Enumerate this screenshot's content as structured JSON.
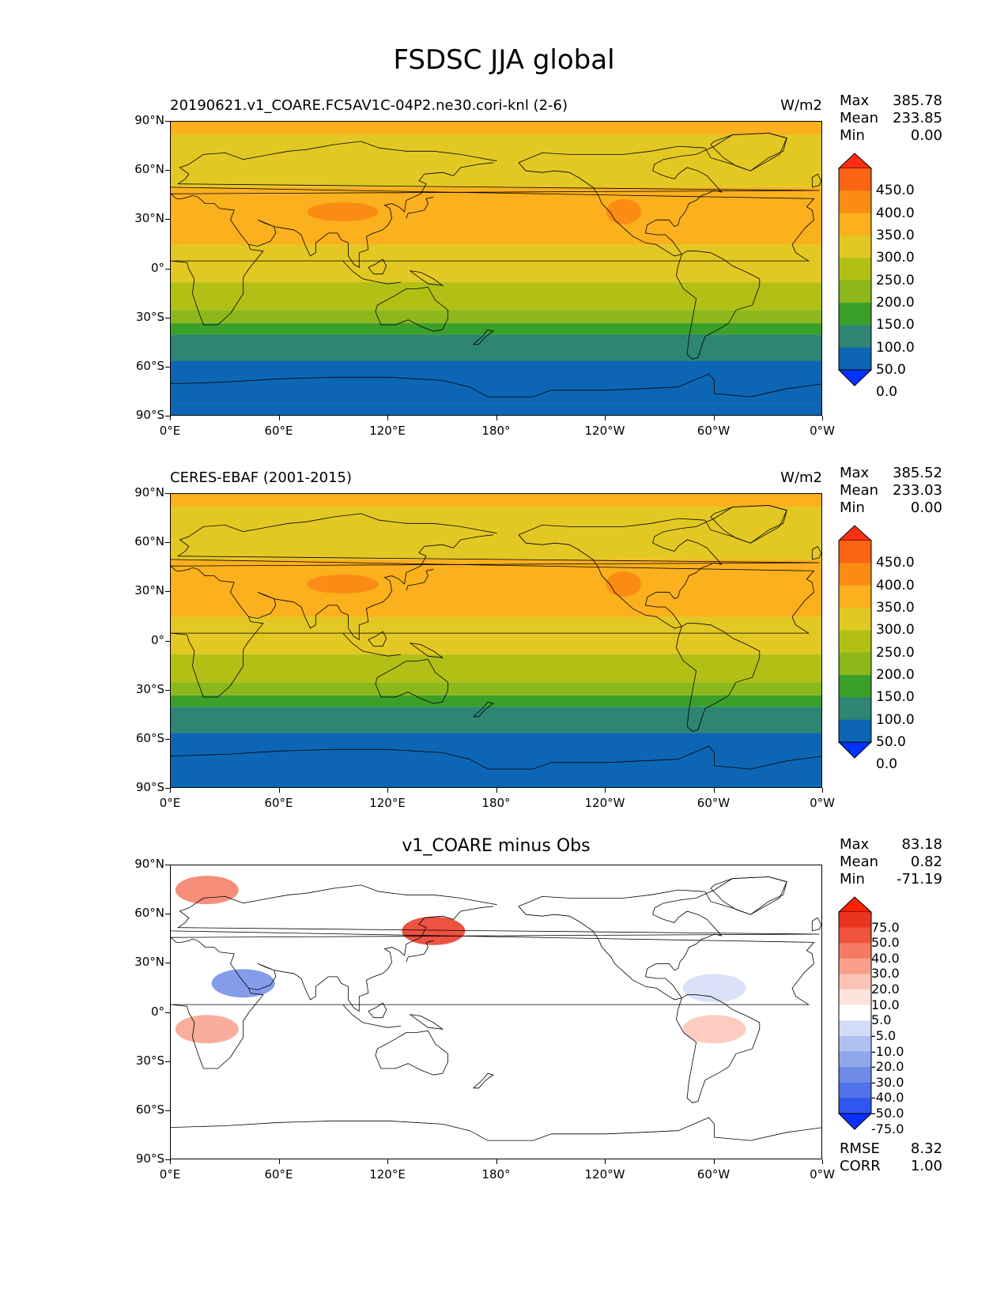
{
  "title": "FSDSC JJA global",
  "panels": [
    {
      "title_left": "20190621.v1_COARE.FC5AV1C-04P2.ne30.cori-knl (2-6)",
      "title_center": "",
      "units": "W/m2",
      "stats": {
        "max_label": "Max",
        "max": "385.78",
        "mean_label": "Mean",
        "mean": "233.85",
        "min_label": "Min",
        "min": "0.00"
      },
      "colorbar_labels": [
        "450.0",
        "400.0",
        "350.0",
        "300.0",
        "250.0",
        "200.0",
        "150.0",
        "100.0",
        "50.0",
        "0.0"
      ],
      "footer": null
    },
    {
      "title_left": "CERES-EBAF (2001-2015)",
      "title_center": "",
      "units": "W/m2",
      "stats": {
        "max_label": "Max",
        "max": "385.52",
        "mean_label": "Mean",
        "mean": "233.03",
        "min_label": "Min",
        "min": "0.00"
      },
      "colorbar_labels": [
        "450.0",
        "400.0",
        "350.0",
        "300.0",
        "250.0",
        "200.0",
        "150.0",
        "100.0",
        "50.0",
        "0.0"
      ],
      "footer": null
    },
    {
      "title_left": "",
      "title_center": "v1_COARE minus Obs",
      "units": "",
      "stats": {
        "max_label": "Max",
        "max": "83.18",
        "mean_label": "Mean",
        "mean": "0.82",
        "min_label": "Min",
        "min": "-71.19"
      },
      "colorbar_labels": [
        "75.0",
        "50.0",
        "40.0",
        "30.0",
        "20.0",
        "10.0",
        "5.0",
        "-5.0",
        "-10.0",
        "-20.0",
        "-30.0",
        "-40.0",
        "-50.0",
        "-75.0"
      ],
      "footer": {
        "rmse_label": "RMSE",
        "rmse": "8.32",
        "corr_label": "CORR",
        "corr": "1.00"
      }
    }
  ],
  "axes": {
    "lat_labels": [
      "90°N",
      "60°N",
      "30°N",
      "0°",
      "30°S",
      "60°S",
      "90°S"
    ],
    "lon_labels": [
      "0°E",
      "60°E",
      "120°E",
      "180°",
      "120°W",
      "60°W",
      "0°W"
    ]
  },
  "chart_data": [
    {
      "type": "heatmap",
      "title": "20190621.v1_COARE.FC5AV1C-04P2.ne30.cori-knl (2-6)",
      "units": "W/m2",
      "xlim": [
        0,
        360
      ],
      "ylim": [
        -90,
        90
      ],
      "levels": [
        0,
        50,
        100,
        150,
        200,
        250,
        300,
        350,
        400,
        450
      ],
      "colors": [
        "#0033ff",
        "#0d66b3",
        "#2e8573",
        "#3ba02a",
        "#8cb81c",
        "#b2c016",
        "#e3c823",
        "#fbb01e",
        "#fa8c14",
        "#fa6414",
        "#fa2f14"
      ],
      "zonal_bands": [
        {
          "lat_range": [
            90,
            82
          ],
          "value": 325
        },
        {
          "lat_range": [
            82,
            50
          ],
          "value": 275
        },
        {
          "lat_range": [
            50,
            15
          ],
          "value": 325
        },
        {
          "lat_range": [
            15,
            -8
          ],
          "value": 275
        },
        {
          "lat_range": [
            -8,
            -25
          ],
          "value": 225
        },
        {
          "lat_range": [
            -25,
            -33
          ],
          "value": 175
        },
        {
          "lat_range": [
            -33,
            -40
          ],
          "value": 125
        },
        {
          "lat_range": [
            -40,
            -56
          ],
          "value": 75
        },
        {
          "lat_range": [
            -56,
            -82
          ],
          "value": 25
        },
        {
          "lat_range": [
            -82,
            -90
          ],
          "value": 0
        }
      ],
      "stats": {
        "max": 385.78,
        "mean": 233.85,
        "min": 0.0
      }
    },
    {
      "type": "heatmap",
      "title": "CERES-EBAF (2001-2015)",
      "units": "W/m2",
      "xlim": [
        0,
        360
      ],
      "ylim": [
        -90,
        90
      ],
      "levels": [
        0,
        50,
        100,
        150,
        200,
        250,
        300,
        350,
        400,
        450
      ],
      "colors": [
        "#0033ff",
        "#0d66b3",
        "#2e8573",
        "#3ba02a",
        "#8cb81c",
        "#b2c016",
        "#e3c823",
        "#fbb01e",
        "#fa8c14",
        "#fa6414",
        "#fa2f14"
      ],
      "zonal_bands": [
        {
          "lat_range": [
            90,
            82
          ],
          "value": 325
        },
        {
          "lat_range": [
            82,
            50
          ],
          "value": 275
        },
        {
          "lat_range": [
            50,
            15
          ],
          "value": 325
        },
        {
          "lat_range": [
            15,
            -8
          ],
          "value": 275
        },
        {
          "lat_range": [
            -8,
            -25
          ],
          "value": 225
        },
        {
          "lat_range": [
            -25,
            -33
          ],
          "value": 175
        },
        {
          "lat_range": [
            -33,
            -40
          ],
          "value": 125
        },
        {
          "lat_range": [
            -40,
            -56
          ],
          "value": 75
        },
        {
          "lat_range": [
            -56,
            -90
          ],
          "value": 25
        }
      ],
      "stats": {
        "max": 385.52,
        "mean": 233.03,
        "min": 0.0
      }
    },
    {
      "type": "heatmap",
      "title": "v1_COARE minus Obs",
      "xlim": [
        0,
        360
      ],
      "ylim": [
        -90,
        90
      ],
      "levels": [
        -75,
        -50,
        -40,
        -30,
        -20,
        -10,
        -5,
        5,
        10,
        20,
        30,
        40,
        50,
        75
      ],
      "colors": [
        "#0b2fff",
        "#2f56f0",
        "#4f72e8",
        "#6e8be6",
        "#8fa6ea",
        "#b0c0f0",
        "#d3dcf7",
        "#ffffff",
        "#fde3dc",
        "#fbc3b6",
        "#f8a08c",
        "#f57a63",
        "#f0543c",
        "#eb3420",
        "#ff2200"
      ],
      "regions": [
        {
          "lon": 40,
          "lat": 18,
          "value": -40
        },
        {
          "lon": 145,
          "lat": 50,
          "value": 50
        },
        {
          "lon": 20,
          "lat": -10,
          "value": 20
        },
        {
          "lon": 300,
          "lat": -10,
          "value": 15
        },
        {
          "lon": 300,
          "lat": 15,
          "value": -10
        },
        {
          "lon": 20,
          "lat": 75,
          "value": 30
        }
      ],
      "stats": {
        "max": 83.18,
        "mean": 0.82,
        "min": -71.19,
        "rmse": 8.32,
        "corr": 1.0
      }
    }
  ]
}
